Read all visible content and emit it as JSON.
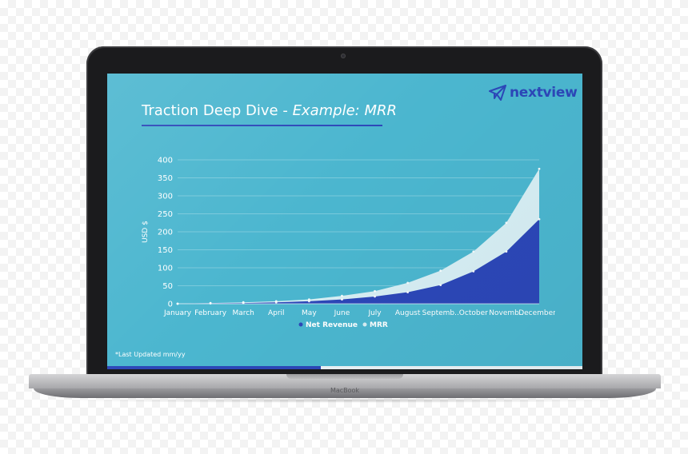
{
  "slide": {
    "title_main": "Traction Deep Dive - ",
    "title_em": "Example: MRR",
    "logo_text": "nextview",
    "footnote": "*Last Updated mm/yy",
    "progress": 0.45
  },
  "device": {
    "label": "MacBook"
  },
  "colors": {
    "screen_bg": "#4bb6cf",
    "accent": "#2c47b8",
    "mrr_fill": "#d6eef4"
  },
  "chart_data": {
    "type": "area",
    "categories": [
      "January",
      "February",
      "March",
      "April",
      "May",
      "June",
      "July",
      "August",
      "Septemb..",
      "October",
      "Novemb..",
      "December.."
    ],
    "tick_labels": [
      "January",
      "February",
      "March",
      "April",
      "May",
      "June",
      "July",
      "August",
      "Septemb..",
      "October",
      "Novemb..",
      "December.."
    ],
    "series": [
      {
        "name": "Net Revenue",
        "color": "#2c47b8",
        "values": [
          0,
          1,
          2,
          4,
          7,
          12,
          20,
          32,
          52,
          90,
          145,
          235
        ]
      },
      {
        "name": "MRR",
        "color": "#d6eef4",
        "values": [
          0,
          2,
          4,
          7,
          12,
          22,
          35,
          58,
          92,
          145,
          225,
          375
        ]
      }
    ],
    "ylabel": "USD $",
    "xlabel": "",
    "ylim": [
      0,
      400
    ],
    "yticks": [
      "0",
      "50",
      "100",
      "150",
      "200",
      "250",
      "300",
      "350",
      "400"
    ],
    "grid": true,
    "legend_position": "bottom"
  }
}
